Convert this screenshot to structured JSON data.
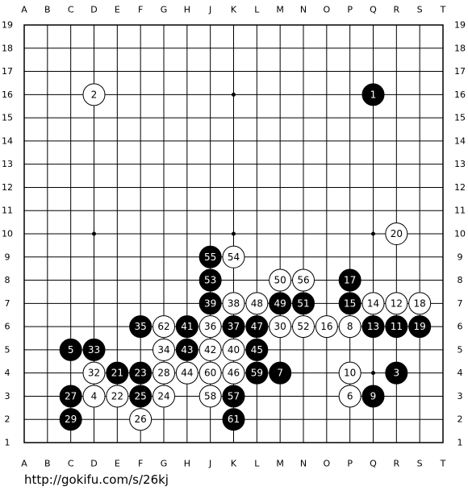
{
  "board": {
    "columns": [
      "A",
      "B",
      "C",
      "D",
      "E",
      "F",
      "G",
      "H",
      "J",
      "K",
      "L",
      "M",
      "N",
      "O",
      "P",
      "Q",
      "R",
      "S",
      "T"
    ],
    "rows": [
      19,
      18,
      17,
      16,
      15,
      14,
      13,
      12,
      11,
      10,
      9,
      8,
      7,
      6,
      5,
      4,
      3,
      2,
      1
    ],
    "stones": [
      {
        "number": 1,
        "color": "black",
        "col": "Q",
        "row": 16
      },
      {
        "number": 2,
        "color": "white",
        "col": "D",
        "row": 16
      },
      {
        "number": 3,
        "color": "black",
        "col": "R",
        "row": 4
      },
      {
        "number": 4,
        "color": "white",
        "col": "D",
        "row": 3
      },
      {
        "number": 5,
        "color": "black",
        "col": "C",
        "row": 5
      },
      {
        "number": 6,
        "color": "white",
        "col": "P",
        "row": 3
      },
      {
        "number": 7,
        "color": "black",
        "col": "M",
        "row": 4
      },
      {
        "number": 8,
        "color": "white",
        "col": "P",
        "row": 6
      },
      {
        "number": 9,
        "color": "black",
        "col": "Q",
        "row": 3
      },
      {
        "number": 10,
        "color": "white",
        "col": "P",
        "row": 4
      },
      {
        "number": 11,
        "color": "black",
        "col": "R",
        "row": 6
      },
      {
        "number": 12,
        "color": "white",
        "col": "R",
        "row": 7
      },
      {
        "number": 13,
        "color": "black",
        "col": "Q",
        "row": 6
      },
      {
        "number": 14,
        "color": "white",
        "col": "Q",
        "row": 7
      },
      {
        "number": 15,
        "color": "black",
        "col": "P",
        "row": 7
      },
      {
        "number": 16,
        "color": "white",
        "col": "O",
        "row": 6
      },
      {
        "number": 17,
        "color": "black",
        "col": "P",
        "row": 8
      },
      {
        "number": 18,
        "color": "white",
        "col": "S",
        "row": 7
      },
      {
        "number": 19,
        "color": "black",
        "col": "S",
        "row": 6
      },
      {
        "number": 20,
        "color": "white",
        "col": "R",
        "row": 10
      },
      {
        "number": 21,
        "color": "black",
        "col": "E",
        "row": 4
      },
      {
        "number": 22,
        "color": "white",
        "col": "E",
        "row": 3
      },
      {
        "number": 23,
        "color": "black",
        "col": "F",
        "row": 4
      },
      {
        "number": 24,
        "color": "white",
        "col": "G",
        "row": 3
      },
      {
        "number": 25,
        "color": "black",
        "col": "F",
        "row": 3
      },
      {
        "number": 26,
        "color": "white",
        "col": "F",
        "row": 2
      },
      {
        "number": 27,
        "color": "black",
        "col": "C",
        "row": 3
      },
      {
        "number": 28,
        "color": "white",
        "col": "G",
        "row": 4
      },
      {
        "number": 29,
        "color": "black",
        "col": "C",
        "row": 2
      },
      {
        "number": 30,
        "color": "white",
        "col": "M",
        "row": 6
      },
      {
        "number": 32,
        "color": "white",
        "col": "D",
        "row": 4
      },
      {
        "number": 33,
        "color": "black",
        "col": "D",
        "row": 5
      },
      {
        "number": 34,
        "color": "white",
        "col": "G",
        "row": 5
      },
      {
        "number": 35,
        "color": "black",
        "col": "F",
        "row": 6
      },
      {
        "number": 36,
        "color": "white",
        "col": "J",
        "row": 6
      },
      {
        "number": 37,
        "color": "black",
        "col": "K",
        "row": 6
      },
      {
        "number": 38,
        "color": "white",
        "col": "K",
        "row": 7
      },
      {
        "number": 39,
        "color": "black",
        "col": "J",
        "row": 7
      },
      {
        "number": 40,
        "color": "white",
        "col": "K",
        "row": 5
      },
      {
        "number": 41,
        "color": "black",
        "col": "H",
        "row": 6
      },
      {
        "number": 42,
        "color": "white",
        "col": "J",
        "row": 5
      },
      {
        "number": 43,
        "color": "black",
        "col": "H",
        "row": 5
      },
      {
        "number": 44,
        "color": "white",
        "col": "H",
        "row": 4
      },
      {
        "number": 45,
        "color": "black",
        "col": "L",
        "row": 5
      },
      {
        "number": 46,
        "color": "white",
        "col": "K",
        "row": 4
      },
      {
        "number": 47,
        "color": "black",
        "col": "L",
        "row": 6
      },
      {
        "number": 48,
        "color": "white",
        "col": "L",
        "row": 7
      },
      {
        "number": 49,
        "color": "black",
        "col": "M",
        "row": 7
      },
      {
        "number": 50,
        "color": "white",
        "col": "M",
        "row": 8
      },
      {
        "number": 51,
        "color": "black",
        "col": "N",
        "row": 7
      },
      {
        "number": 52,
        "color": "white",
        "col": "N",
        "row": 6
      },
      {
        "number": 53,
        "color": "black",
        "col": "J",
        "row": 8
      },
      {
        "number": 54,
        "color": "white",
        "col": "K",
        "row": 9
      },
      {
        "number": 55,
        "color": "black",
        "col": "J",
        "row": 9
      },
      {
        "number": 56,
        "color": "white",
        "col": "N",
        "row": 8
      },
      {
        "number": 57,
        "color": "black",
        "col": "K",
        "row": 3
      },
      {
        "number": 58,
        "color": "white",
        "col": "J",
        "row": 3
      },
      {
        "number": 59,
        "color": "black",
        "col": "L",
        "row": 4
      },
      {
        "number": 60,
        "color": "white",
        "col": "J",
        "row": 4
      },
      {
        "number": 61,
        "color": "black",
        "col": "K",
        "row": 2
      },
      {
        "number": 62,
        "color": "white",
        "col": "G",
        "row": 6
      }
    ]
  },
  "footer": {
    "url": "http://gokifu.com/s/26kj"
  }
}
